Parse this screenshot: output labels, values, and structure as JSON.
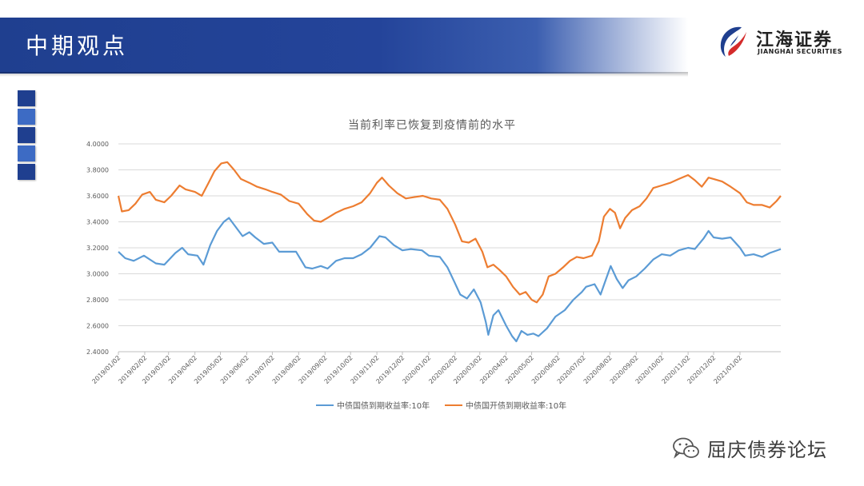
{
  "header": {
    "title": "中期观点"
  },
  "logo": {
    "name_cn": "江海证券",
    "name_en": "JIANGHAI SECURITIES",
    "icon": "jianghai-logo-icon"
  },
  "decor": {
    "square_colors": [
      "#1f3f8f",
      "#3d6bc4",
      "#1f3f8f",
      "#3d6bc4",
      "#1f3f8f"
    ]
  },
  "watermark": {
    "text": "屈庆债券论坛",
    "icon": "wechat-icon"
  },
  "chart_data": {
    "type": "line",
    "title": "当前利率已恢复到疫情前的水平",
    "xlabel": "",
    "ylabel": "",
    "ylim": [
      2.4,
      4.0
    ],
    "yticks": [
      "4.0000",
      "3.8000",
      "3.6000",
      "3.4000",
      "3.2000",
      "3.0000",
      "2.8000",
      "2.6000",
      "2.4000"
    ],
    "xticks": [
      "2019/01/02",
      "2019/02/02",
      "2019/03/02",
      "2019/04/02",
      "2019/05/02",
      "2019/06/02",
      "2019/07/02",
      "2019/08/02",
      "2019/09/02",
      "2019/10/02",
      "2019/11/02",
      "2019/12/02",
      "2020/01/02",
      "2020/02/02",
      "2020/03/02",
      "2020/04/02",
      "2020/05/02",
      "2020/06/02",
      "2020/07/02",
      "2020/08/02",
      "2020/09/02",
      "2020/10/02",
      "2020/11/02",
      "2020/12/02",
      "2021/01/02"
    ],
    "x_start": "2019/01/02",
    "x_end": "2021/02/19",
    "grid": "horizontal",
    "legend_position": "bottom",
    "colors": {
      "series1": "#5b9bd5",
      "series2": "#ed7d31"
    },
    "series": [
      {
        "name": "中债国债到期收益率:10年",
        "points": [
          [
            "2019/01/02",
            3.17
          ],
          [
            "2019/01/10",
            3.12
          ],
          [
            "2019/01/20",
            3.1
          ],
          [
            "2019/02/01",
            3.14
          ],
          [
            "2019/02/15",
            3.08
          ],
          [
            "2019/02/25",
            3.07
          ],
          [
            "2019/03/10",
            3.16
          ],
          [
            "2019/03/18",
            3.2
          ],
          [
            "2019/03/25",
            3.15
          ],
          [
            "2019/04/05",
            3.14
          ],
          [
            "2019/04/12",
            3.07
          ],
          [
            "2019/04/20",
            3.22
          ],
          [
            "2019/04/28",
            3.33
          ],
          [
            "2019/05/06",
            3.4
          ],
          [
            "2019/05/12",
            3.43
          ],
          [
            "2019/05/20",
            3.36
          ],
          [
            "2019/05/28",
            3.29
          ],
          [
            "2019/06/05",
            3.32
          ],
          [
            "2019/06/12",
            3.28
          ],
          [
            "2019/06/22",
            3.23
          ],
          [
            "2019/07/02",
            3.24
          ],
          [
            "2019/07/10",
            3.17
          ],
          [
            "2019/07/20",
            3.17
          ],
          [
            "2019/07/30",
            3.17
          ],
          [
            "2019/08/10",
            3.05
          ],
          [
            "2019/08/18",
            3.04
          ],
          [
            "2019/08/28",
            3.06
          ],
          [
            "2019/09/05",
            3.04
          ],
          [
            "2019/09/15",
            3.1
          ],
          [
            "2019/09/25",
            3.12
          ],
          [
            "2019/10/05",
            3.12
          ],
          [
            "2019/10/15",
            3.15
          ],
          [
            "2019/10/25",
            3.2
          ],
          [
            "2019/11/05",
            3.29
          ],
          [
            "2019/11/12",
            3.28
          ],
          [
            "2019/11/22",
            3.22
          ],
          [
            "2019/12/02",
            3.18
          ],
          [
            "2019/12/12",
            3.19
          ],
          [
            "2019/12/25",
            3.18
          ],
          [
            "2020/01/02",
            3.14
          ],
          [
            "2020/01/15",
            3.13
          ],
          [
            "2020/01/24",
            3.05
          ],
          [
            "2020/02/01",
            2.94
          ],
          [
            "2020/02/08",
            2.84
          ],
          [
            "2020/02/16",
            2.81
          ],
          [
            "2020/02/24",
            2.88
          ],
          [
            "2020/03/03",
            2.78
          ],
          [
            "2020/03/09",
            2.63
          ],
          [
            "2020/03/12",
            2.53
          ],
          [
            "2020/03/18",
            2.68
          ],
          [
            "2020/03/24",
            2.72
          ],
          [
            "2020/04/02",
            2.6
          ],
          [
            "2020/04/09",
            2.52
          ],
          [
            "2020/04/14",
            2.48
          ],
          [
            "2020/04/20",
            2.56
          ],
          [
            "2020/04/27",
            2.53
          ],
          [
            "2020/05/04",
            2.54
          ],
          [
            "2020/05/10",
            2.52
          ],
          [
            "2020/05/20",
            2.58
          ],
          [
            "2020/05/30",
            2.67
          ],
          [
            "2020/06/10",
            2.72
          ],
          [
            "2020/06/20",
            2.8
          ],
          [
            "2020/06/30",
            2.86
          ],
          [
            "2020/07/05",
            2.9
          ],
          [
            "2020/07/15",
            2.92
          ],
          [
            "2020/07/22",
            2.84
          ],
          [
            "2020/07/28",
            2.95
          ],
          [
            "2020/08/03",
            3.06
          ],
          [
            "2020/08/10",
            2.96
          ],
          [
            "2020/08/17",
            2.89
          ],
          [
            "2020/08/24",
            2.95
          ],
          [
            "2020/09/02",
            2.98
          ],
          [
            "2020/09/12",
            3.04
          ],
          [
            "2020/09/22",
            3.11
          ],
          [
            "2020/10/02",
            3.15
          ],
          [
            "2020/10/12",
            3.14
          ],
          [
            "2020/10/22",
            3.18
          ],
          [
            "2020/11/02",
            3.2
          ],
          [
            "2020/11/10",
            3.19
          ],
          [
            "2020/11/20",
            3.27
          ],
          [
            "2020/11/26",
            3.33
          ],
          [
            "2020/12/02",
            3.28
          ],
          [
            "2020/12/12",
            3.27
          ],
          [
            "2020/12/22",
            3.28
          ],
          [
            "2021/01/02",
            3.2
          ],
          [
            "2021/01/08",
            3.14
          ],
          [
            "2021/01/18",
            3.15
          ],
          [
            "2021/01/28",
            3.13
          ],
          [
            "2021/02/06",
            3.16
          ],
          [
            "2021/02/19",
            3.19
          ]
        ]
      },
      {
        "name": "中债国开债到期收益率:10年",
        "points": [
          [
            "2019/01/02",
            3.6
          ],
          [
            "2019/01/06",
            3.48
          ],
          [
            "2019/01/14",
            3.49
          ],
          [
            "2019/01/22",
            3.54
          ],
          [
            "2019/01/30",
            3.61
          ],
          [
            "2019/02/08",
            3.63
          ],
          [
            "2019/02/15",
            3.57
          ],
          [
            "2019/02/25",
            3.55
          ],
          [
            "2019/03/05",
            3.6
          ],
          [
            "2019/03/15",
            3.68
          ],
          [
            "2019/03/22",
            3.65
          ],
          [
            "2019/04/02",
            3.63
          ],
          [
            "2019/04/10",
            3.6
          ],
          [
            "2019/04/18",
            3.7
          ],
          [
            "2019/04/25",
            3.79
          ],
          [
            "2019/05/03",
            3.85
          ],
          [
            "2019/05/10",
            3.86
          ],
          [
            "2019/05/18",
            3.8
          ],
          [
            "2019/05/26",
            3.73
          ],
          [
            "2019/06/05",
            3.7
          ],
          [
            "2019/06/14",
            3.67
          ],
          [
            "2019/06/24",
            3.65
          ],
          [
            "2019/07/02",
            3.63
          ],
          [
            "2019/07/12",
            3.61
          ],
          [
            "2019/07/22",
            3.56
          ],
          [
            "2019/08/02",
            3.54
          ],
          [
            "2019/08/12",
            3.46
          ],
          [
            "2019/08/20",
            3.41
          ],
          [
            "2019/08/28",
            3.4
          ],
          [
            "2019/09/05",
            3.43
          ],
          [
            "2019/09/15",
            3.47
          ],
          [
            "2019/09/25",
            3.5
          ],
          [
            "2019/10/05",
            3.52
          ],
          [
            "2019/10/15",
            3.55
          ],
          [
            "2019/10/25",
            3.62
          ],
          [
            "2019/11/02",
            3.7
          ],
          [
            "2019/11/08",
            3.74
          ],
          [
            "2019/11/16",
            3.68
          ],
          [
            "2019/11/26",
            3.62
          ],
          [
            "2019/12/06",
            3.58
          ],
          [
            "2019/12/16",
            3.59
          ],
          [
            "2019/12/26",
            3.6
          ],
          [
            "2020/01/05",
            3.58
          ],
          [
            "2020/01/15",
            3.57
          ],
          [
            "2020/01/24",
            3.5
          ],
          [
            "2020/02/02",
            3.38
          ],
          [
            "2020/02/10",
            3.25
          ],
          [
            "2020/02/18",
            3.24
          ],
          [
            "2020/02/26",
            3.27
          ],
          [
            "2020/03/05",
            3.17
          ],
          [
            "2020/03/11",
            3.05
          ],
          [
            "2020/03/18",
            3.07
          ],
          [
            "2020/03/25",
            3.03
          ],
          [
            "2020/04/02",
            2.98
          ],
          [
            "2020/04/10",
            2.9
          ],
          [
            "2020/04/18",
            2.84
          ],
          [
            "2020/04/25",
            2.86
          ],
          [
            "2020/05/02",
            2.8
          ],
          [
            "2020/05/08",
            2.78
          ],
          [
            "2020/05/15",
            2.84
          ],
          [
            "2020/05/22",
            2.98
          ],
          [
            "2020/05/30",
            3.0
          ],
          [
            "2020/06/08",
            3.05
          ],
          [
            "2020/06/16",
            3.1
          ],
          [
            "2020/06/24",
            3.13
          ],
          [
            "2020/07/02",
            3.12
          ],
          [
            "2020/07/12",
            3.14
          ],
          [
            "2020/07/20",
            3.25
          ],
          [
            "2020/07/26",
            3.44
          ],
          [
            "2020/08/02",
            3.5
          ],
          [
            "2020/08/08",
            3.47
          ],
          [
            "2020/08/14",
            3.35
          ],
          [
            "2020/08/20",
            3.43
          ],
          [
            "2020/08/28",
            3.49
          ],
          [
            "2020/09/06",
            3.52
          ],
          [
            "2020/09/14",
            3.58
          ],
          [
            "2020/09/22",
            3.66
          ],
          [
            "2020/10/02",
            3.68
          ],
          [
            "2020/10/12",
            3.7
          ],
          [
            "2020/10/22",
            3.73
          ],
          [
            "2020/11/02",
            3.76
          ],
          [
            "2020/11/10",
            3.72
          ],
          [
            "2020/11/18",
            3.67
          ],
          [
            "2020/11/26",
            3.74
          ],
          [
            "2020/12/02",
            3.73
          ],
          [
            "2020/12/12",
            3.71
          ],
          [
            "2020/12/22",
            3.67
          ],
          [
            "2021/01/02",
            3.62
          ],
          [
            "2021/01/10",
            3.55
          ],
          [
            "2021/01/18",
            3.53
          ],
          [
            "2021/01/28",
            3.53
          ],
          [
            "2021/02/06",
            3.51
          ],
          [
            "2021/02/14",
            3.56
          ],
          [
            "2021/02/19",
            3.6
          ]
        ]
      }
    ]
  }
}
